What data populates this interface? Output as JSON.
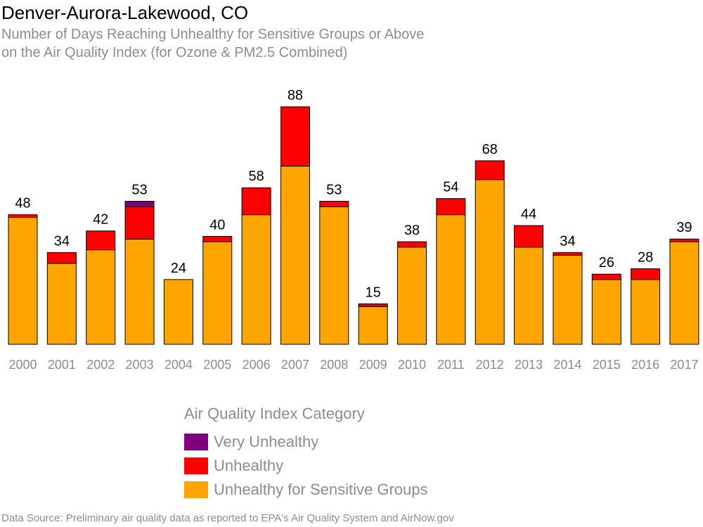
{
  "title": "Denver-Aurora-Lakewood, CO",
  "subtitle_line1": "Number of Days Reaching Unhealthy for Sensitive Groups or Above",
  "subtitle_line2": "on the Air Quality Index (for Ozone & PM2.5 Combined)",
  "source": "Data Source: Preliminary air quality data as reported to EPA's Air Quality System and AirNow.gov",
  "legend": {
    "title": "Air Quality Index Category",
    "items": [
      {
        "label": "Very Unhealthy",
        "color": "#800080"
      },
      {
        "label": "Unhealthy",
        "color": "#ff0000"
      },
      {
        "label": "Unhealthy for Sensitive Groups",
        "color": "#ffa500"
      }
    ]
  },
  "chart_data": {
    "type": "bar",
    "stacked": true,
    "categories": [
      "2000",
      "2001",
      "2002",
      "2003",
      "2004",
      "2005",
      "2006",
      "2007",
      "2008",
      "2009",
      "2010",
      "2011",
      "2012",
      "2013",
      "2014",
      "2015",
      "2016",
      "2017"
    ],
    "series": [
      {
        "name": "Unhealthy for Sensitive Groups",
        "color": "#ffa500",
        "values": [
          47,
          30,
          35,
          39,
          24,
          38,
          48,
          66,
          51,
          14,
          36,
          48,
          61,
          36,
          33,
          24,
          24,
          38
        ]
      },
      {
        "name": "Unhealthy",
        "color": "#ff0000",
        "values": [
          1,
          4,
          7,
          12,
          0,
          2,
          10,
          22,
          2,
          1,
          2,
          6,
          7,
          8,
          1,
          2,
          4,
          1
        ]
      },
      {
        "name": "Very Unhealthy",
        "color": "#800080",
        "values": [
          0,
          0,
          0,
          2,
          0,
          0,
          0,
          0,
          0,
          0,
          0,
          0,
          0,
          0,
          0,
          0,
          0,
          0
        ]
      }
    ],
    "totals": [
      48,
      34,
      42,
      53,
      24,
      40,
      58,
      88,
      53,
      15,
      38,
      54,
      68,
      44,
      34,
      26,
      28,
      39
    ],
    "ylim": [
      0,
      88
    ],
    "grid": false,
    "legend_position": "bottom-center"
  }
}
